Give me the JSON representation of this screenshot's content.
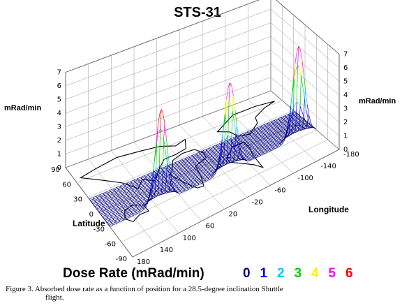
{
  "chart_data": {
    "type": "surface3d",
    "title": "STS-31",
    "z_axis_label": "mRad/min",
    "z_ticks": [
      "0",
      "1",
      "2",
      "3",
      "4",
      "5",
      "6",
      "7"
    ],
    "latitude_label": "Latitude",
    "latitude_ticks": [
      "90",
      "60",
      "30",
      "0",
      "-30",
      "-60",
      "-90"
    ],
    "longitude_label": "Longitude",
    "longitude_ticks": [
      "180",
      "140",
      "100",
      "60",
      "20",
      "-20",
      "-60",
      "-100",
      "-140",
      "-180"
    ],
    "grid": true,
    "colorbar_label": "Dose Rate  (mRad/min)",
    "colorbar": [
      {
        "value": "0",
        "color": "#000080"
      },
      {
        "value": "1",
        "color": "#0000ff"
      },
      {
        "value": "2",
        "color": "#00c8ff"
      },
      {
        "value": "3",
        "color": "#00d000"
      },
      {
        "value": "4",
        "color": "#ffee00"
      },
      {
        "value": "5",
        "color": "#ff00ff"
      },
      {
        "value": "6",
        "color": "#ff0000"
      }
    ],
    "peaks": [
      {
        "longitude": -150,
        "latitude": -28.5,
        "dose_rate": 6.7
      },
      {
        "longitude": -30,
        "latitude": -28.5,
        "dose_rate": 6.4
      },
      {
        "longitude": 90,
        "latitude": -28.5,
        "dose_rate": 6.8
      }
    ],
    "flight_band_latitude": [
      -28.5,
      28.5
    ],
    "baseline_dose_rate": 0
  },
  "caption": {
    "line1": "Figure 3. Absorbed dose rate as a function of position for a 28.5-degree inclination Shuttle",
    "line2": "flight."
  }
}
